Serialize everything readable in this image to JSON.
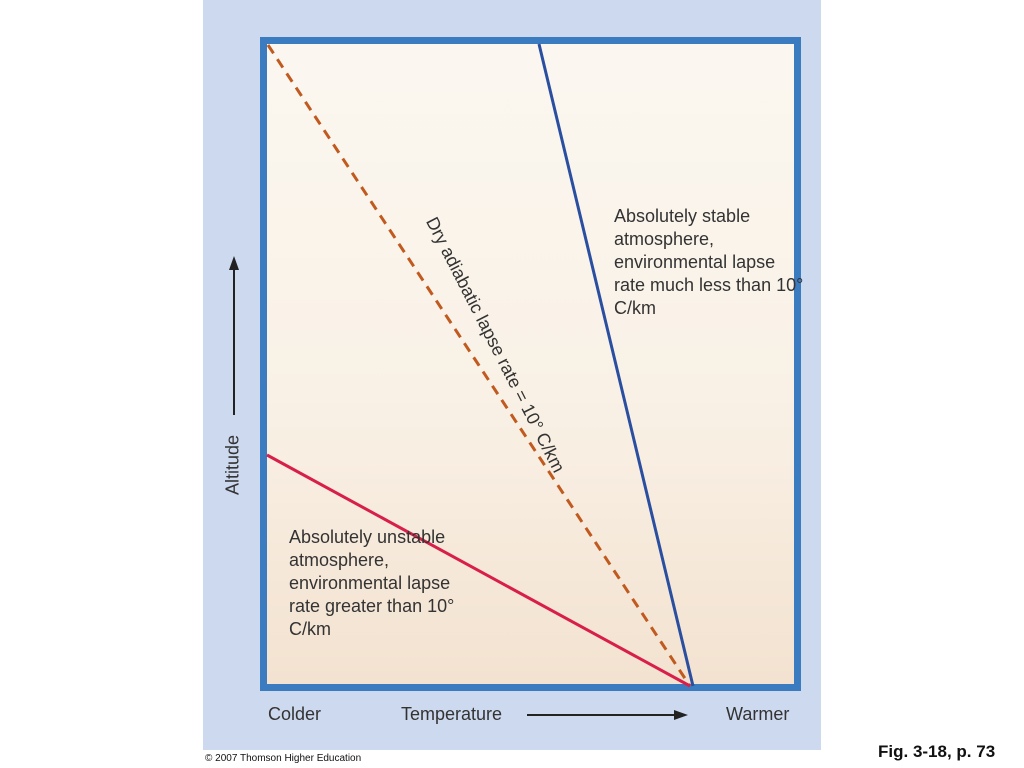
{
  "labels": {
    "stable": "Absolutely stable atmosphere, environmental lapse rate much less than 10° C/km",
    "unstable": "Absolutely unstable atmosphere, environmental lapse rate greater than 10° C/km",
    "dry_adiabatic": "Dry adiabatic lapse rate = 10° C/km"
  },
  "axes": {
    "y_label": "Altitude",
    "x_label": "Temperature",
    "x_left": "Colder",
    "x_right": "Warmer"
  },
  "footer": {
    "copyright": "© 2007 Thomson Higher Education",
    "figure_ref": "Fig. 3-18, p. 73"
  },
  "colors": {
    "background_panel": "#cdd9ee",
    "frame": "#3b7bbf",
    "stable_line": "#2a4fa0",
    "unstable_line": "#d81f4a",
    "dry_adiabatic_line": "#c05a1f"
  }
}
